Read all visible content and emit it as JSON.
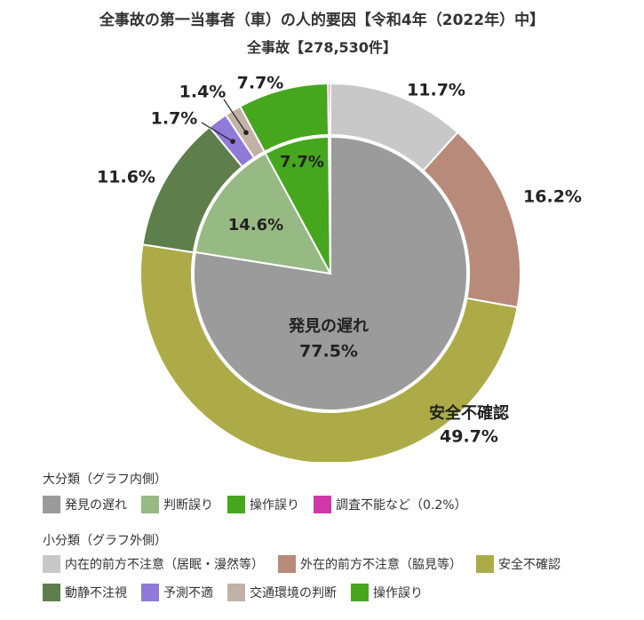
{
  "title": "全事故の第一当事者（車）の人的要因【令和4年（2022年）中】",
  "subtitle": "全事故【278,530件】",
  "colors": {
    "gray": "#9b9b9b",
    "light_green": "#97b983",
    "green": "#46a61e",
    "magenta": "#d038a8",
    "light_gray": "#c8c8c8",
    "brown": "#b88a7a",
    "olive": "#acab48",
    "dark_green": "#5e7e4c",
    "purple": "#8f7ad8",
    "taupe": "#c2b1a6"
  },
  "chart_data": {
    "type": "pie",
    "title": "全事故の第一当事者（車）の人的要因【令和4年（2022年）中】",
    "subtitle": "全事故【278,530件】",
    "inner": {
      "name": "大分類（グラフ内側）",
      "slices": [
        {
          "label": "発見の遅れ",
          "value": 77.5,
          "display": "77.5%",
          "color": "#9b9b9b"
        },
        {
          "label": "判断誤り",
          "value": 14.6,
          "display": "14.6%",
          "color": "#97b983"
        },
        {
          "label": "操作誤り",
          "value": 7.7,
          "display": "7.7%",
          "color": "#46a61e"
        },
        {
          "label": "調査不能など（0.2%）",
          "value": 0.2,
          "display": "",
          "color": "#d038a8"
        }
      ]
    },
    "outer": {
      "name": "小分類（グラフ外側）",
      "slices": [
        {
          "label": "内在的前方不注意（居眠・漫然等）",
          "value": 11.7,
          "display": "11.7%",
          "color": "#c8c8c8"
        },
        {
          "label": "外在的前方不注意（脇見等）",
          "value": 16.2,
          "display": "16.2%",
          "color": "#b88a7a"
        },
        {
          "label": "安全不確認",
          "value": 49.7,
          "display": "49.7%",
          "color": "#acab48"
        },
        {
          "label": "動静不注視",
          "value": 11.6,
          "display": "11.6%",
          "color": "#5e7e4c"
        },
        {
          "label": "予測不適",
          "value": 1.7,
          "display": "1.7%",
          "color": "#8f7ad8"
        },
        {
          "label": "交通環境の判断",
          "value": 1.4,
          "display": "1.4%",
          "color": "#c2b1a6"
        },
        {
          "label": "操作誤り",
          "value": 7.7,
          "display": "7.7%",
          "color": "#46a61e"
        },
        {
          "label": "",
          "value": 0.2,
          "display": "",
          "color": "#d038a8"
        }
      ]
    },
    "in_chart_labels": {
      "inner_main_label": "発見の遅れ",
      "outer_main_label": "安全不確認"
    }
  },
  "legend": {
    "inner_heading": "大分類（グラフ内側）",
    "inner_items": [
      "発見の遅れ",
      "判断誤り",
      "操作誤り",
      "調査不能など（0.2%）"
    ],
    "outer_heading": "小分類（グラフ外側）",
    "outer_items": [
      "内在的前方不注意（居眠・漫然等）",
      "外在的前方不注意（脇見等）",
      "安全不確認",
      "動静不注視",
      "予測不適",
      "交通環境の判断",
      "操作誤り"
    ]
  }
}
